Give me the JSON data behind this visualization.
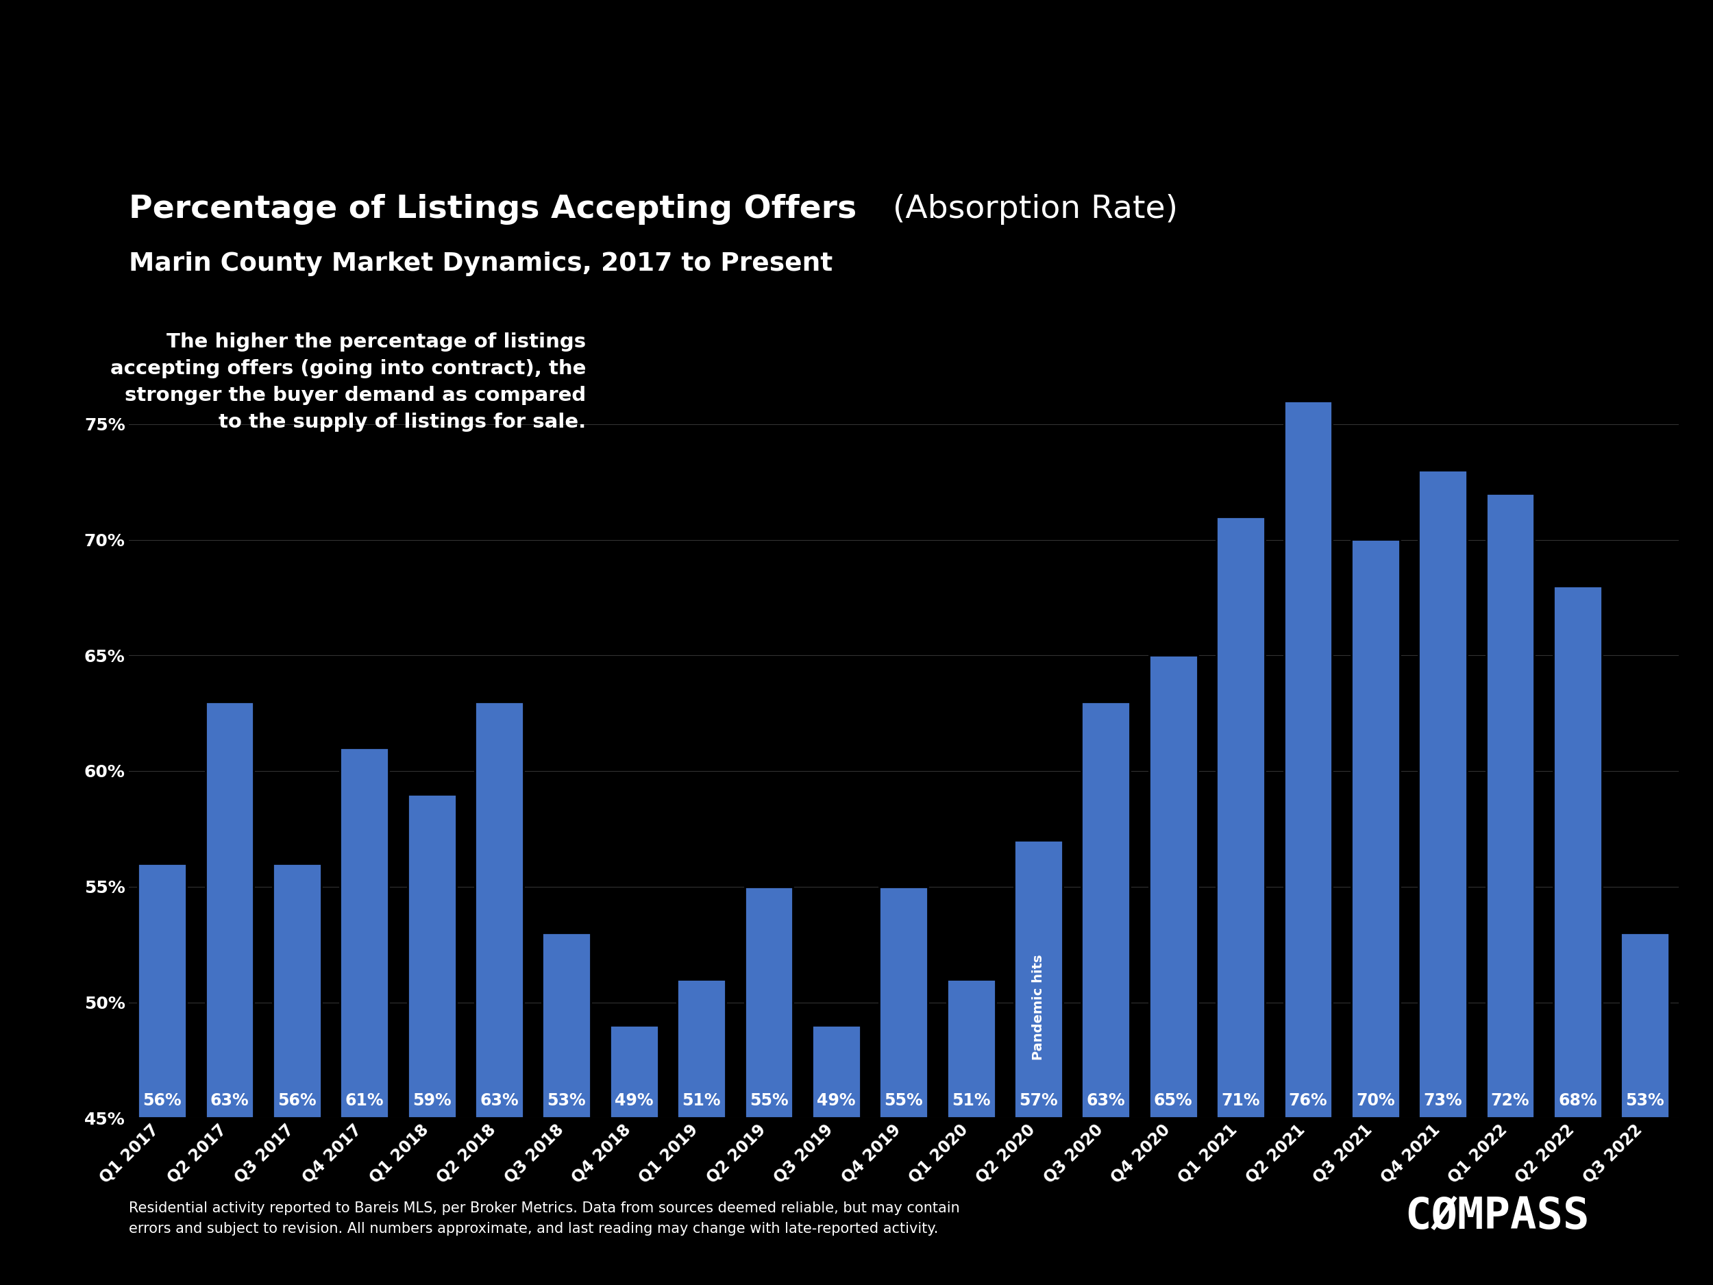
{
  "title_bold": "Percentage of Listings Accepting Offers",
  "title_normal": " (Absorption Rate)",
  "title_sub": "Marin County Market Dynamics, 2017 to Present",
  "categories": [
    "Q1 2017",
    "Q2 2017",
    "Q3 2017",
    "Q4 2017",
    "Q1 2018",
    "Q2 2018",
    "Q3 2018",
    "Q4 2018",
    "Q1 2019",
    "Q2 2019",
    "Q3 2019",
    "Q4 2019",
    "Q1 2020",
    "Q2 2020",
    "Q3 2020",
    "Q4 2020",
    "Q1 2021",
    "Q2 2021",
    "Q3 2021",
    "Q4 2021",
    "Q1 2022",
    "Q2 2022",
    "Q3 2022"
  ],
  "values": [
    56,
    63,
    56,
    61,
    59,
    63,
    53,
    49,
    51,
    55,
    49,
    55,
    51,
    57,
    63,
    65,
    71,
    76,
    70,
    73,
    72,
    68,
    53
  ],
  "bar_color": "#4472C4",
  "background_color": "#000000",
  "text_color": "#ffffff",
  "grid_color": "#555555",
  "annotation_text": "The higher the percentage of listings\naccepting offers (going into contract), the\nstronger the buyer demand as compared\nto the supply of listings for sale.",
  "pandemic_label": "Pandemic hits",
  "pandemic_bar_index": 13,
  "ylim_min": 45,
  "ylim_max": 80,
  "yticks": [
    45,
    50,
    55,
    60,
    65,
    70,
    75
  ],
  "ytick_labels": [
    "45%",
    "50%",
    "55%",
    "60%",
    "65%",
    "70%",
    "75%"
  ],
  "footer_text_line1": "Residential activity reported to Bareis MLS, per Broker Metrics. Data from sources deemed reliable, but may contain",
  "footer_text_line2": "errors and subject to revision. All numbers approximate, and last reading may change with late-reported activity.",
  "compass_text": "CØMPASS",
  "title_fontsize": 34,
  "subtitle_fontsize": 27,
  "bar_label_fontsize": 17,
  "axis_label_fontsize": 18,
  "annotation_fontsize": 21,
  "footer_fontsize": 15,
  "compass_fontsize": 46
}
